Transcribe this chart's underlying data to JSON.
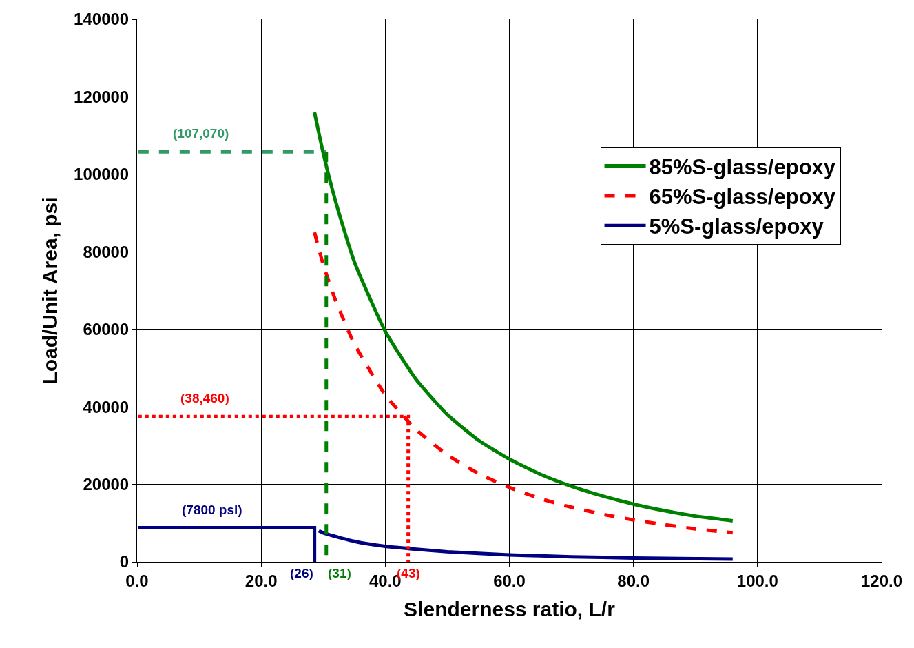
{
  "chart_data": {
    "type": "line",
    "xlabel": "Slenderness ratio, L/r",
    "ylabel": "Load/Unit Area, psi",
    "xlim": [
      0,
      120
    ],
    "ylim": [
      0,
      140000
    ],
    "xticks": [
      {
        "value": 0,
        "label": "0.0"
      },
      {
        "value": 20,
        "label": "20.0"
      },
      {
        "value": 40,
        "label": "40.0"
      },
      {
        "value": 60,
        "label": "60.0"
      },
      {
        "value": 80,
        "label": "80.0"
      },
      {
        "value": 100,
        "label": "100.0"
      },
      {
        "value": 120,
        "label": "120.0"
      }
    ],
    "yticks": [
      0,
      20000,
      40000,
      60000,
      80000,
      100000,
      120000,
      140000
    ],
    "grid": true,
    "legend": "top right",
    "marker": "none",
    "series": [
      {
        "name": "85%S-glass/epoxy",
        "color": "#008000",
        "line_style": "solid",
        "x": [
          28.6,
          30,
          32,
          35,
          40,
          45,
          50,
          55,
          60,
          65,
          70,
          75,
          80,
          85,
          90,
          96
        ],
        "values": [
          116000,
          105500,
          93000,
          77500,
          59500,
          47000,
          38000,
          31400,
          26500,
          22600,
          19500,
          17000,
          14900,
          13200,
          11800,
          10600
        ]
      },
      {
        "name": "65%S-glass/epoxy",
        "color": "#ff0000",
        "line_style": "dashed",
        "x": [
          28.6,
          30,
          32,
          35,
          40,
          45,
          50,
          55,
          60,
          65,
          70,
          75,
          80,
          85,
          90,
          96
        ],
        "values": [
          85000,
          76700,
          67400,
          56300,
          43100,
          34100,
          27600,
          22800,
          19200,
          16300,
          14100,
          12300,
          10800,
          9600,
          8500,
          7500
        ]
      },
      {
        "name": "5%S-glass/epoxy",
        "color": "#000080",
        "line_style": "solid",
        "x": [
          29.3,
          30.3,
          35,
          40,
          44,
          50,
          60,
          70,
          80,
          90,
          96
        ],
        "values": [
          8000,
          7300,
          5300,
          4000,
          3400,
          2600,
          1800,
          1300,
          1000,
          800,
          700
        ]
      },
      {
        "color": "#339966",
        "line_style": "dashed",
        "x": [
          0.2,
          30.5
        ],
        "values": [
          105800,
          105800
        ]
      },
      {
        "color": "#008000",
        "line_style": "dashed",
        "x": [
          30.5,
          30.5
        ],
        "values": [
          105800,
          0
        ]
      },
      {
        "color": "#ff0000",
        "line_style": "dotted",
        "x": [
          0.2,
          43.7,
          43.7
        ],
        "values": [
          37500,
          37500,
          0
        ]
      },
      {
        "color": "#000080",
        "line_style": "solid",
        "x": [
          0.2,
          28.6,
          28.6
        ],
        "values": [
          8800,
          8800,
          0
        ]
      }
    ],
    "annotations": [
      {
        "text": "(107,070)",
        "x": 10.3,
        "y": 105800
      },
      {
        "text": "(38,460)",
        "x": 10.9,
        "y": 37500
      },
      {
        "text": "(7800 psi)",
        "x": 12.1,
        "y": 8800
      },
      {
        "text": "(26)",
        "x": 28.6,
        "y": 0
      },
      {
        "text": "(31)",
        "x": 30.5,
        "y": 0
      },
      {
        "text": "(43)",
        "x": 43.7,
        "y": 0
      }
    ]
  }
}
